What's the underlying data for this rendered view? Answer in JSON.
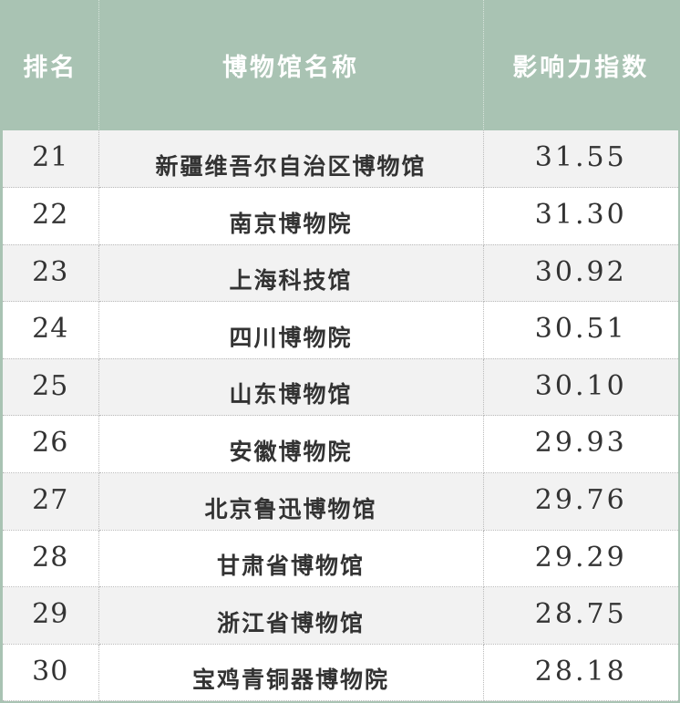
{
  "header": {
    "rank": "排名",
    "name": "博物馆名称",
    "score": "影响力指数"
  },
  "colors": {
    "header_bg": "#a9c3b3",
    "row_alt": "#f2f2f2"
  },
  "rows": [
    {
      "rank": "21",
      "name": "新疆维吾尔自治区博物馆",
      "score": "31.55"
    },
    {
      "rank": "22",
      "name": "南京博物院",
      "score": "31.30"
    },
    {
      "rank": "23",
      "name": "上海科技馆",
      "score": "30.92"
    },
    {
      "rank": "24",
      "name": "四川博物院",
      "score": "30.51"
    },
    {
      "rank": "25",
      "name": "山东博物馆",
      "score": "30.10"
    },
    {
      "rank": "26",
      "name": "安徽博物院",
      "score": "29.93"
    },
    {
      "rank": "27",
      "name": "北京鲁迅博物馆",
      "score": "29.76"
    },
    {
      "rank": "28",
      "name": "甘肃省博物馆",
      "score": "29.29"
    },
    {
      "rank": "29",
      "name": "浙江省博物馆",
      "score": "28.75"
    },
    {
      "rank": "30",
      "name": "宝鸡青铜器博物院",
      "score": "28.18"
    }
  ]
}
